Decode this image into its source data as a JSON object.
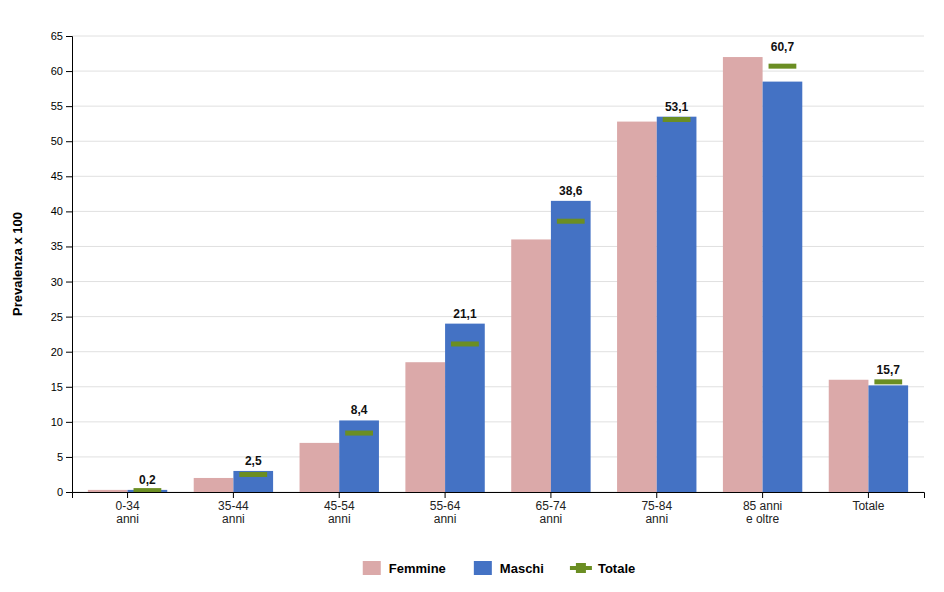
{
  "chart_data": {
    "type": "bar",
    "categories": [
      "0-34\nanni",
      "35-44\nanni",
      "45-54\nanni",
      "55-64\nanni",
      "65-74\nanni",
      "75-84\nanni",
      "85 anni\ne oltre",
      "Totale"
    ],
    "series": [
      {
        "name": "Femmine",
        "type": "bar",
        "color": "#dba9a9",
        "values": [
          0.3,
          2.0,
          7.0,
          18.5,
          36.0,
          52.8,
          62.0,
          16.0
        ]
      },
      {
        "name": "Maschi",
        "type": "bar",
        "color": "#4472c4",
        "values": [
          0.3,
          3.0,
          10.2,
          24.0,
          41.5,
          53.5,
          58.5,
          15.2
        ]
      },
      {
        "name": "Totale",
        "type": "marker",
        "marker": "square",
        "color": "#6b8e23",
        "data_labels": true,
        "values": [
          0.2,
          2.5,
          8.4,
          21.1,
          38.6,
          53.1,
          60.7,
          15.7
        ],
        "value_labels": [
          "0,2",
          "2,5",
          "8,4",
          "21,1",
          "38,6",
          "53,1",
          "60,7",
          "15,7"
        ]
      }
    ],
    "y_label": "Prevalenza x 100",
    "ylim": [
      0,
      65
    ],
    "yticks": [
      0,
      5,
      10,
      15,
      20,
      25,
      30,
      35,
      40,
      45,
      50,
      55,
      60,
      65
    ],
    "grid": true,
    "legend": "bottom"
  }
}
